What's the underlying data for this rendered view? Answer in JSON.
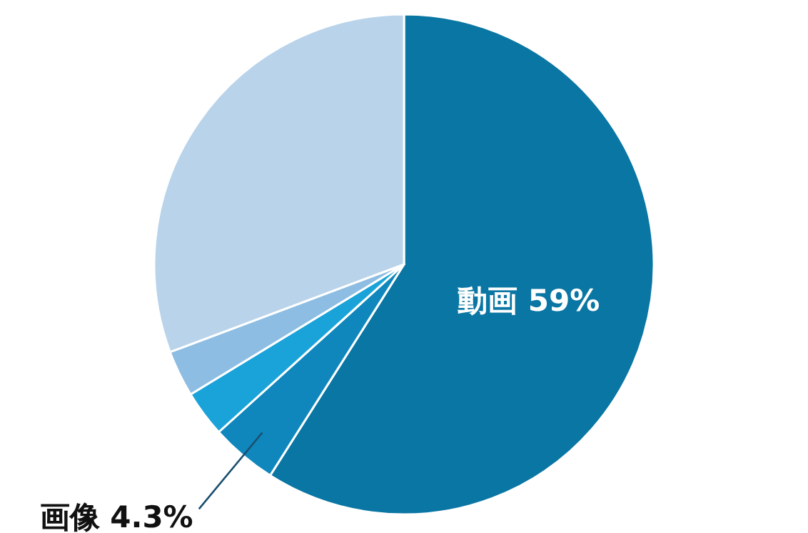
{
  "chart_data": {
    "type": "pie",
    "categories": [
      "動画",
      "画像",
      null,
      null,
      null
    ],
    "values": [
      59,
      4.3,
      3,
      3,
      30.7
    ],
    "value_labels": [
      "59%",
      "4.3%",
      null,
      null,
      null
    ],
    "colors": [
      "#0a76a3",
      "#0f87bd",
      "#1aa3d9",
      "#8dbde2",
      "#b8d3ea"
    ]
  }
}
